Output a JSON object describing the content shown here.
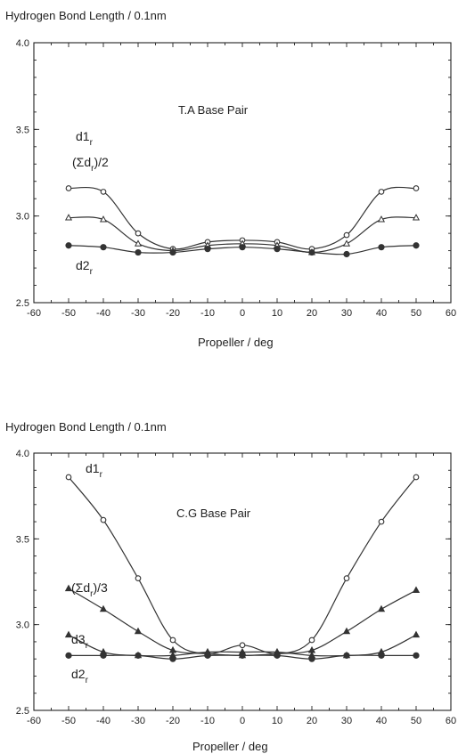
{
  "chart_data": [
    {
      "type": "line",
      "title": "T.A Base Pair",
      "ylabel": "Hydrogen Bond Length / 0.1nm",
      "xlabel": "Propeller / deg",
      "xlim": [
        -60,
        60
      ],
      "ylim": [
        2.5,
        4.0
      ],
      "xticks": [
        -60,
        -50,
        -40,
        -30,
        -20,
        -10,
        0,
        10,
        20,
        30,
        40,
        50,
        60
      ],
      "yticks": [
        2.5,
        3.0,
        3.5,
        4.0
      ],
      "ytick_labels": [
        "2.5",
        "3.0",
        "3.5",
        "4.0"
      ],
      "grid": false,
      "x": [
        -50,
        -40,
        -30,
        -20,
        -10,
        0,
        10,
        20,
        30,
        40,
        50
      ],
      "series": [
        {
          "label": "d1",
          "label_sub": "r",
          "marker": "circle-open",
          "values": [
            3.16,
            3.14,
            2.9,
            2.81,
            2.85,
            2.86,
            2.85,
            2.81,
            2.89,
            3.14,
            3.16
          ]
        },
        {
          "label": "(Σd",
          "label_sub": "r",
          "label_post": ")/2",
          "marker": "triangle-open",
          "values": [
            2.99,
            2.98,
            2.84,
            2.8,
            2.83,
            2.84,
            2.83,
            2.79,
            2.84,
            2.98,
            2.99
          ]
        },
        {
          "label": "d2",
          "label_sub": "r",
          "marker": "circle-filled",
          "values": [
            2.83,
            2.82,
            2.79,
            2.79,
            2.81,
            2.82,
            2.81,
            2.79,
            2.78,
            2.82,
            2.83
          ]
        }
      ]
    },
    {
      "type": "line",
      "title": "C.G Base Pair",
      "ylabel": "Hydrogen Bond Length / 0.1nm",
      "xlabel": "Propeller / deg",
      "xlim": [
        -60,
        60
      ],
      "ylim": [
        2.5,
        4.0
      ],
      "xticks": [
        -60,
        -50,
        -40,
        -30,
        -20,
        -10,
        0,
        10,
        20,
        30,
        40,
        50,
        60
      ],
      "yticks": [
        2.5,
        3.0,
        3.5,
        4.0
      ],
      "ytick_labels": [
        "2.5",
        "3.0",
        "3.5",
        "4.0"
      ],
      "grid": false,
      "x": [
        -50,
        -40,
        -30,
        -20,
        -10,
        0,
        10,
        20,
        30,
        40,
        50
      ],
      "series": [
        {
          "label": "d1",
          "label_sub": "r",
          "marker": "circle-open",
          "values": [
            3.86,
            3.61,
            3.27,
            2.91,
            2.83,
            2.88,
            2.83,
            2.91,
            3.27,
            3.6,
            3.86
          ]
        },
        {
          "label": "(Σd",
          "label_sub": "r",
          "label_post": ")/3",
          "marker": "triangle-filled",
          "values": [
            3.21,
            3.09,
            2.96,
            2.85,
            2.83,
            2.82,
            2.83,
            2.85,
            2.96,
            3.09,
            3.2
          ]
        },
        {
          "label": "d3",
          "label_sub": "r",
          "marker": "triangle-filled",
          "values": [
            2.94,
            2.84,
            2.82,
            2.82,
            2.84,
            2.84,
            2.84,
            2.82,
            2.82,
            2.84,
            2.94
          ]
        },
        {
          "label": "d2",
          "label_sub": "r",
          "marker": "circle-filled",
          "values": [
            2.82,
            2.82,
            2.82,
            2.8,
            2.82,
            2.82,
            2.82,
            2.8,
            2.82,
            2.82,
            2.82
          ]
        }
      ]
    }
  ]
}
